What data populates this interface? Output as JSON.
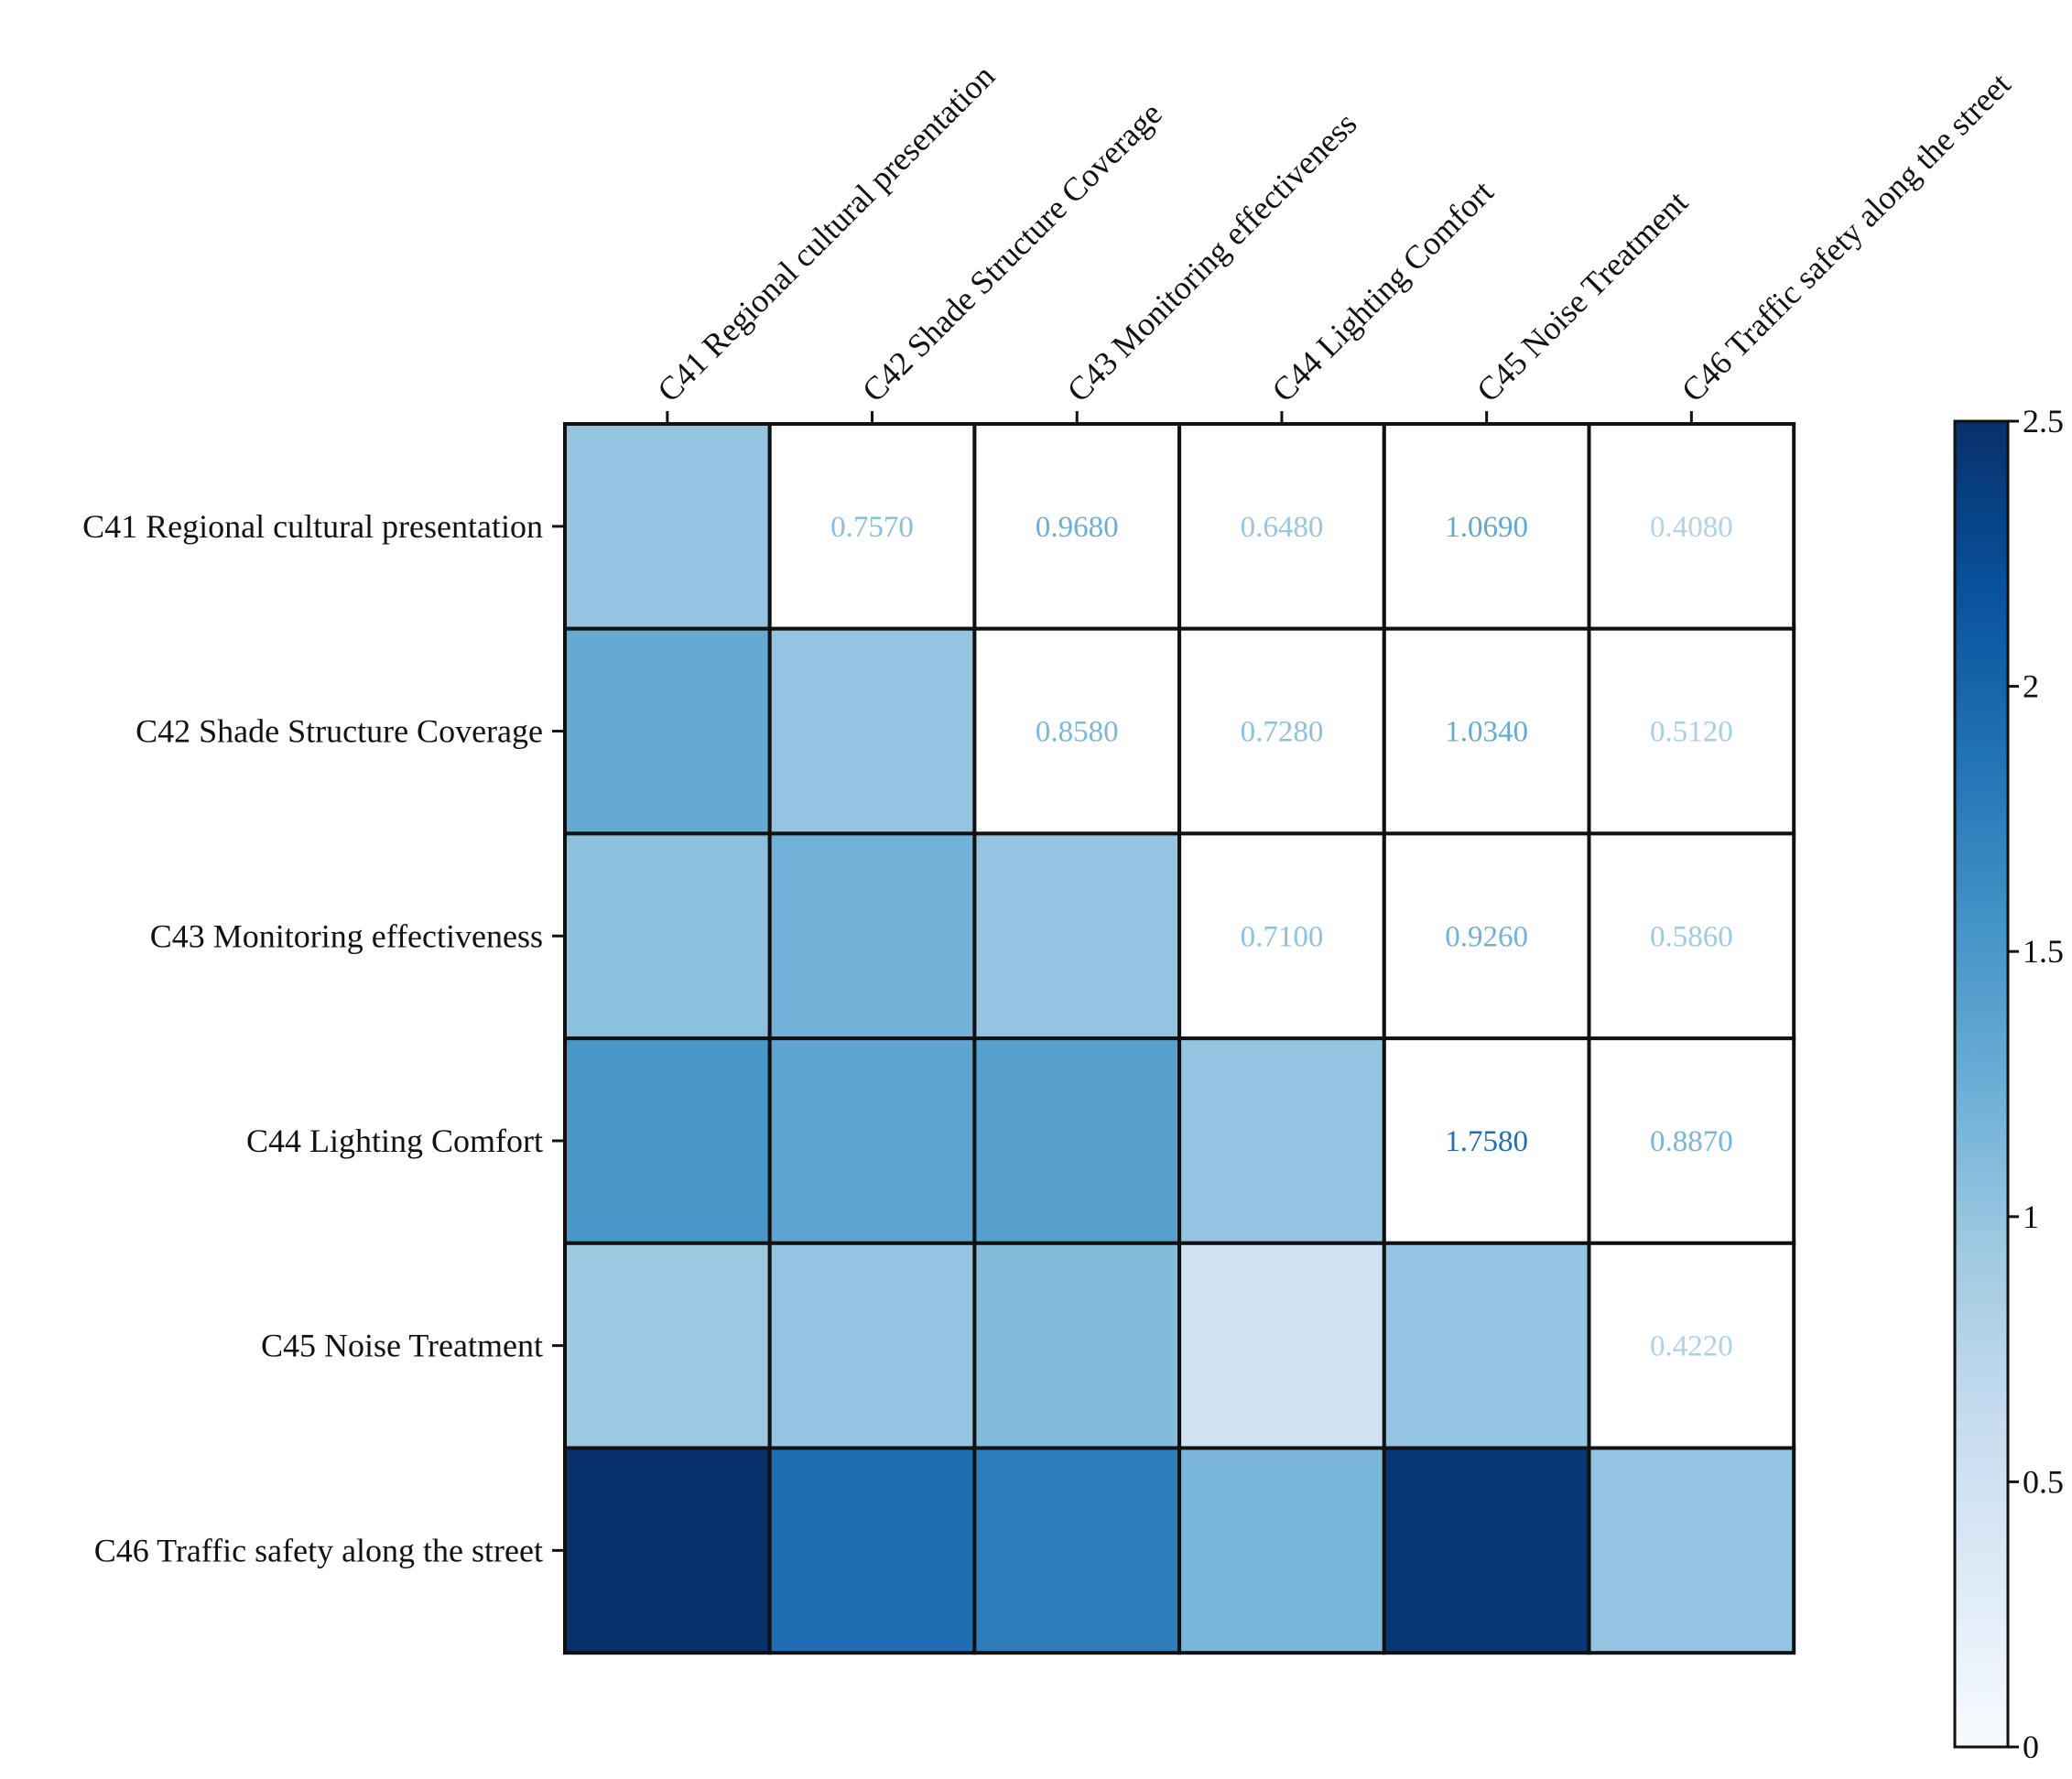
{
  "chart_data": {
    "type": "heatmap",
    "title": "",
    "row_labels": [
      "C41 Regional cultural presentation",
      "C42 Shade Structure Coverage",
      "C43 Monitoring effectiveness",
      "C44 Lighting Comfort",
      "C45 Noise Treatment",
      "C46 Traffic safety along the street"
    ],
    "col_labels": [
      "C41 Regional cultural presentation",
      "C42 Shade Structure Coverage",
      "C43 Monitoring effectiveness",
      "C44 Lighting Comfort",
      "C45 Noise Treatment",
      "C46 Traffic safety along the street"
    ],
    "upper_triangle_labels": [
      [
        null,
        "0.7570",
        "0.9680",
        "0.6480",
        "1.0690",
        "0.4080"
      ],
      [
        null,
        null,
        "0.8580",
        "0.7280",
        "1.0340",
        "0.5120"
      ],
      [
        null,
        null,
        null,
        "0.7100",
        "0.9260",
        "0.5860"
      ],
      [
        null,
        null,
        null,
        null,
        "1.7580",
        "0.8870"
      ],
      [
        null,
        null,
        null,
        null,
        null,
        "0.4220"
      ],
      [
        null,
        null,
        null,
        null,
        null,
        null
      ]
    ],
    "upper_triangle_values": [
      [
        null,
        0.757,
        0.968,
        0.648,
        1.069,
        0.408
      ],
      [
        null,
        null,
        0.858,
        0.728,
        1.034,
        0.512
      ],
      [
        null,
        null,
        null,
        0.71,
        0.926,
        0.586
      ],
      [
        null,
        null,
        null,
        null,
        1.758,
        0.887
      ],
      [
        null,
        null,
        null,
        null,
        null,
        0.422
      ],
      [
        null,
        null,
        null,
        null,
        null,
        null
      ]
    ],
    "lower_triangle_values": [
      [
        1.0,
        null,
        null,
        null,
        null,
        null
      ],
      [
        1.3,
        1.0,
        null,
        null,
        null,
        null
      ],
      [
        1.05,
        1.2,
        1.0,
        null,
        null,
        null
      ],
      [
        1.5,
        1.35,
        1.4,
        1.0,
        null,
        null
      ],
      [
        0.95,
        1.0,
        1.1,
        0.5,
        1.0,
        null
      ],
      [
        2.5,
        1.9,
        1.75,
        1.15,
        2.45,
        1.0
      ]
    ],
    "colorbar": {
      "range": [
        0,
        2.5
      ],
      "ticks": [
        0,
        0.5,
        1,
        1.5,
        2,
        2.5
      ],
      "tick_labels": [
        "0",
        "0.5",
        "1",
        "1.5",
        "2",
        "2.5"
      ],
      "colormap": "Blues"
    }
  }
}
